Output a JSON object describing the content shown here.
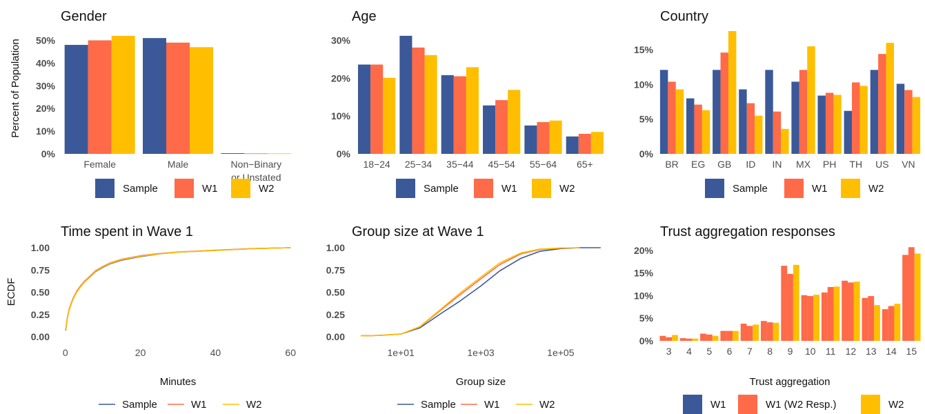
{
  "colors": {
    "Sample": "#3b5998",
    "W1": "#ff6a48",
    "W2": "#ffbf00",
    "W1_W2_Resp": "#ff6a48"
  },
  "chart_data": [
    {
      "type": "bar",
      "title": "Gender",
      "ylabel": "Percent of Population",
      "xlabel": "",
      "ylim": [
        0,
        0.55
      ],
      "yticks": [
        "0%",
        "10%",
        "20%",
        "30%",
        "40%",
        "50%"
      ],
      "categories": [
        "Female",
        "Male",
        "Non−Binary\nor Unstated"
      ],
      "series": [
        {
          "name": "Sample",
          "values": [
            0.48,
            0.51,
            0.003
          ]
        },
        {
          "name": "W1",
          "values": [
            0.5,
            0.49,
            0.002
          ]
        },
        {
          "name": "W2",
          "values": [
            0.52,
            0.47,
            0.002
          ]
        }
      ],
      "legend": [
        "Sample",
        "W1",
        "W2"
      ]
    },
    {
      "type": "bar",
      "title": "Age",
      "xlabel": "",
      "ylim": [
        0,
        0.33
      ],
      "yticks": [
        "0%",
        "10%",
        "20%",
        "30%"
      ],
      "categories": [
        "18−24",
        "25−34",
        "35−44",
        "45−54",
        "55−64",
        "65+"
      ],
      "series": [
        {
          "name": "Sample",
          "values": [
            0.236,
            0.312,
            0.208,
            0.128,
            0.075,
            0.046
          ]
        },
        {
          "name": "W1",
          "values": [
            0.236,
            0.281,
            0.205,
            0.142,
            0.084,
            0.053
          ]
        },
        {
          "name": "W2",
          "values": [
            0.201,
            0.261,
            0.229,
            0.169,
            0.088,
            0.058
          ]
        }
      ],
      "legend": [
        "Sample",
        "W1",
        "W2"
      ]
    },
    {
      "type": "bar",
      "title": "Country",
      "xlabel": "",
      "ylim": [
        0,
        0.18
      ],
      "yticks": [
        "0%",
        "5%",
        "10%",
        "15%"
      ],
      "categories": [
        "BR",
        "EG",
        "GB",
        "ID",
        "IN",
        "MX",
        "PH",
        "TH",
        "US",
        "VN"
      ],
      "series": [
        {
          "name": "Sample",
          "values": [
            0.121,
            0.08,
            0.121,
            0.093,
            0.121,
            0.104,
            0.084,
            0.062,
            0.121,
            0.101
          ]
        },
        {
          "name": "W1",
          "values": [
            0.104,
            0.071,
            0.146,
            0.073,
            0.061,
            0.121,
            0.088,
            0.103,
            0.144,
            0.092
          ]
        },
        {
          "name": "W2",
          "values": [
            0.093,
            0.063,
            0.177,
            0.055,
            0.036,
            0.155,
            0.085,
            0.098,
            0.16,
            0.082
          ]
        }
      ],
      "legend": [
        "Sample",
        "W1",
        "W2"
      ]
    },
    {
      "type": "line",
      "title": "Time spent in Wave 1",
      "ylabel": "ECDF",
      "xlabel": "Minutes",
      "xlim": [
        0,
        60
      ],
      "ylim": [
        0,
        1
      ],
      "xticks": [
        "0",
        "20",
        "40",
        "60"
      ],
      "yticks": [
        "0.00",
        "0.25",
        "0.50",
        "0.75",
        "1.00"
      ],
      "series": [
        {
          "name": "Sample",
          "x": [
            0.1,
            0.5,
            1,
            2,
            3,
            4,
            5,
            6,
            8,
            10,
            12,
            15,
            20,
            25,
            30,
            40,
            50,
            60
          ],
          "y": [
            0.07,
            0.2,
            0.3,
            0.42,
            0.5,
            0.56,
            0.61,
            0.65,
            0.73,
            0.78,
            0.82,
            0.86,
            0.9,
            0.93,
            0.95,
            0.97,
            0.99,
            1.0
          ]
        },
        {
          "name": "W1",
          "x": [
            0.1,
            0.5,
            1,
            2,
            3,
            4,
            5,
            6,
            8,
            10,
            12,
            15,
            20,
            25,
            30,
            40,
            50,
            60
          ],
          "y": [
            0.08,
            0.21,
            0.31,
            0.43,
            0.51,
            0.57,
            0.62,
            0.66,
            0.74,
            0.79,
            0.83,
            0.87,
            0.91,
            0.935,
            0.952,
            0.972,
            0.99,
            1.0
          ]
        },
        {
          "name": "W2",
          "x": [
            0.1,
            0.5,
            1,
            2,
            3,
            4,
            5,
            6,
            8,
            10,
            12,
            15,
            20,
            25,
            30,
            40,
            50,
            60
          ],
          "y": [
            0.075,
            0.2,
            0.3,
            0.42,
            0.5,
            0.56,
            0.61,
            0.655,
            0.735,
            0.785,
            0.825,
            0.865,
            0.905,
            0.932,
            0.95,
            0.97,
            0.988,
            1.0
          ]
        }
      ],
      "legend": [
        "Sample",
        "W1",
        "W2"
      ]
    },
    {
      "type": "line",
      "title": "Group size at Wave 1",
      "xlabel": "Group size",
      "xscale": "log10",
      "xlim": [
        1,
        1000000
      ],
      "ylim": [
        0,
        1
      ],
      "xticks": [
        "1e+01",
        "1e+03",
        "1e+05"
      ],
      "yticks": [
        "0.00",
        "0.25",
        "0.50",
        "0.75",
        "1.00"
      ],
      "series": [
        {
          "name": "Sample",
          "x": [
            1,
            3,
            10,
            30,
            100,
            300,
            1000,
            3000,
            10000,
            30000,
            100000,
            300000,
            1000000
          ],
          "y": [
            0.01,
            0.015,
            0.03,
            0.1,
            0.26,
            0.4,
            0.57,
            0.74,
            0.88,
            0.96,
            0.99,
            1.0,
            1.0
          ]
        },
        {
          "name": "W1",
          "x": [
            1,
            3,
            10,
            30,
            100,
            300,
            1000,
            3000,
            10000,
            30000,
            100000,
            300000
          ],
          "y": [
            0.01,
            0.015,
            0.03,
            0.11,
            0.3,
            0.47,
            0.65,
            0.81,
            0.93,
            0.98,
            0.995,
            1.0
          ]
        },
        {
          "name": "W2",
          "x": [
            1,
            3,
            10,
            30,
            100,
            300,
            1000,
            3000,
            10000,
            30000,
            100000,
            300000
          ],
          "y": [
            0.01,
            0.015,
            0.03,
            0.115,
            0.31,
            0.49,
            0.67,
            0.83,
            0.94,
            0.985,
            0.997,
            1.0
          ]
        }
      ],
      "legend": [
        "Sample",
        "W1",
        "W2"
      ]
    },
    {
      "type": "bar",
      "title": "Trust aggregation responses",
      "xlabel": "Trust aggregation",
      "ylim": [
        0,
        0.215
      ],
      "yticks": [
        "0%",
        "5%",
        "10%",
        "15%",
        "20%"
      ],
      "categories": [
        "3",
        "4",
        "5",
        "6",
        "7",
        "8",
        "9",
        "10",
        "11",
        "12",
        "13",
        "14",
        "15"
      ],
      "series": [
        {
          "name": "W1",
          "values": [
            0.011,
            0.006,
            0.016,
            0.022,
            0.038,
            0.044,
            0.166,
            0.101,
            0.107,
            0.133,
            0.095,
            0.07,
            0.19
          ]
        },
        {
          "name": "W1 (W2 Resp.)",
          "values": [
            0.008,
            0.005,
            0.014,
            0.022,
            0.033,
            0.041,
            0.148,
            0.099,
            0.119,
            0.129,
            0.099,
            0.077,
            0.207
          ]
        },
        {
          "name": "W2",
          "values": [
            0.013,
            0.005,
            0.011,
            0.022,
            0.036,
            0.04,
            0.168,
            0.102,
            0.12,
            0.131,
            0.079,
            0.082,
            0.193
          ]
        }
      ],
      "legend": [
        "W1",
        "W1 (W2 Resp.)",
        "W2"
      ]
    }
  ]
}
